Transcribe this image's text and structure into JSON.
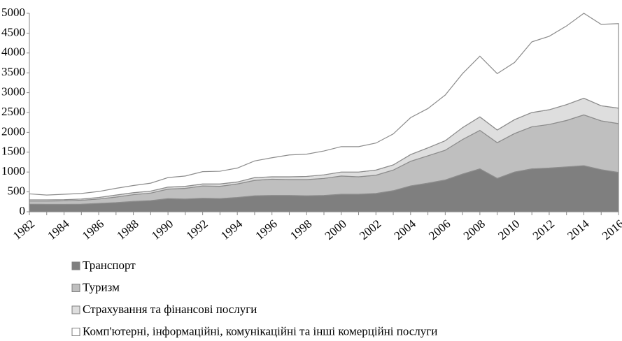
{
  "chart_data": {
    "type": "stacked_area",
    "categories": [
      "1982",
      null,
      "1984",
      null,
      "1986",
      null,
      "1988",
      null,
      "1990",
      null,
      "1992",
      null,
      "1994",
      null,
      "1996",
      null,
      "1998",
      null,
      "2000",
      null,
      "2002",
      null,
      "2004",
      null,
      "2006",
      null,
      "2008",
      null,
      "2010",
      null,
      "2012",
      null,
      "2014",
      null,
      "2016"
    ],
    "series": [
      {
        "name": "Транспорт",
        "color": "#7f7f7f",
        "values": [
          190,
          185,
          185,
          190,
          210,
          230,
          260,
          280,
          330,
          320,
          340,
          330,
          360,
          400,
          410,
          410,
          400,
          410,
          440,
          440,
          460,
          530,
          650,
          720,
          800,
          950,
          1080,
          840,
          1000,
          1080,
          1100,
          1130,
          1160,
          1060,
          990
        ]
      },
      {
        "name": "Туризм",
        "color": "#bfbfbf",
        "values": [
          80,
          85,
          90,
          100,
          110,
          140,
          170,
          190,
          240,
          270,
          310,
          310,
          340,
          390,
          410,
          400,
          410,
          430,
          460,
          440,
          460,
          520,
          620,
          690,
          750,
          870,
          970,
          900,
          970,
          1060,
          1100,
          1170,
          1280,
          1230,
          1230
        ]
      },
      {
        "name": "Страхування та фінансові послуги",
        "color": "#dedede",
        "values": [
          30,
          30,
          30,
          30,
          40,
          50,
          50,
          50,
          50,
          50,
          50,
          60,
          50,
          70,
          60,
          70,
          80,
          90,
          100,
          120,
          130,
          130,
          170,
          200,
          240,
          300,
          340,
          320,
          350,
          360,
          370,
          400,
          420,
          380,
          390
        ]
      },
      {
        "name": "Комп'ютерні, інформаційні, комунікаційні та інші комерційні послуги",
        "color": "#ffffff",
        "values": [
          150,
          120,
          135,
          140,
          150,
          170,
          180,
          200,
          240,
          260,
          310,
          320,
          350,
          420,
          480,
          550,
          560,
          600,
          640,
          640,
          680,
          780,
          930,
          990,
          1150,
          1360,
          1530,
          1420,
          1440,
          1780,
          1850,
          1980,
          2140,
          2050,
          2130
        ]
      }
    ],
    "ylim": [
      0,
      5000
    ],
    "yticks": [
      0,
      500,
      1000,
      1500,
      2000,
      2500,
      3000,
      3500,
      4000,
      4500,
      5000
    ],
    "legend": "bottom"
  }
}
